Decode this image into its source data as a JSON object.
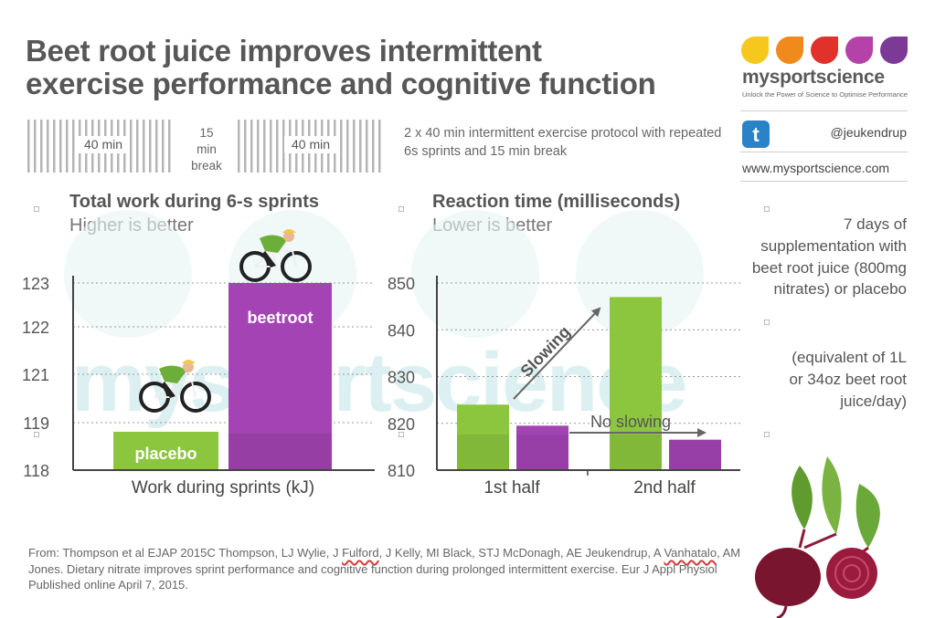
{
  "header": {
    "title_line1": "Beet root juice improves intermittent",
    "title_line2": "exercise performance and cognitive function"
  },
  "brand": {
    "name": "mysportscience",
    "tagline": "Unlock the Power of Science to Optimise Performance",
    "handle": "@jeukendrup",
    "website": "www.mysportscience.com",
    "logo_colors": [
      "#f6c81e",
      "#f08a1c",
      "#e0322a",
      "#b442a8",
      "#7c3a96"
    ],
    "twitter_color": "#2a83c6"
  },
  "protocol": {
    "block1_label": "40 min",
    "break_label": [
      "15",
      "min",
      "break"
    ],
    "block2_label": "40 min",
    "description": "2 x 40 min intermittent exercise protocol with repeated 6s sprints and 15 min break"
  },
  "watermark": "mysportscience",
  "side_notes": {
    "supplementation": "7 days of supplementation with beet root juice (800mg nitrates) or placebo",
    "equivalent": "(equivalent of 1L or 34oz beet root juice/day)"
  },
  "citation": {
    "part1": "From: Thompson et al EJAP 2015C Thompson, LJ Wylie, J ",
    "fulford": "Fulford",
    "part2": ", J Kelly, MI Black, STJ McDonagh, AE Jeukendrup, A ",
    "vanhatalo": "Vanhatalo",
    "part3": ", AM Jones. Dietary nitrate improves sprint performance and cognitive function during prolonged intermittent exercise. Eur J Appl Physiol Published online April 7, 2015."
  },
  "colors": {
    "placebo": "#8cc63f",
    "beetroot": "#a444b4",
    "grid": "#999999",
    "arrow": "#666666"
  },
  "chart_data": [
    {
      "type": "bar",
      "title": "Total work during 6-s sprints",
      "subtitle": "Higher is better",
      "xlabel": "Work during sprints (kJ)",
      "ylabel": "",
      "ylim": [
        118,
        123
      ],
      "y_ticks": [
        "118",
        "119",
        "121",
        "122",
        "123"
      ],
      "categories": [
        "placebo",
        "beetroot"
      ],
      "values": [
        118.8,
        123
      ],
      "bar_labels": [
        "placebo",
        "beetroot"
      ],
      "grid": true
    },
    {
      "type": "bar",
      "title": "Reaction time (milliseconds)",
      "subtitle": "Lower is better",
      "xlabel": "",
      "ylabel": "",
      "ylim": [
        810,
        850
      ],
      "y_ticks": [
        "810",
        "820",
        "830",
        "840",
        "850"
      ],
      "categories": [
        "1st half",
        "2nd half"
      ],
      "series": [
        {
          "name": "placebo",
          "values": [
            824,
            847
          ]
        },
        {
          "name": "beetroot",
          "values": [
            819.5,
            816.5
          ]
        }
      ],
      "annotations": [
        "Slowing",
        "No slowing"
      ],
      "grid": true
    }
  ]
}
